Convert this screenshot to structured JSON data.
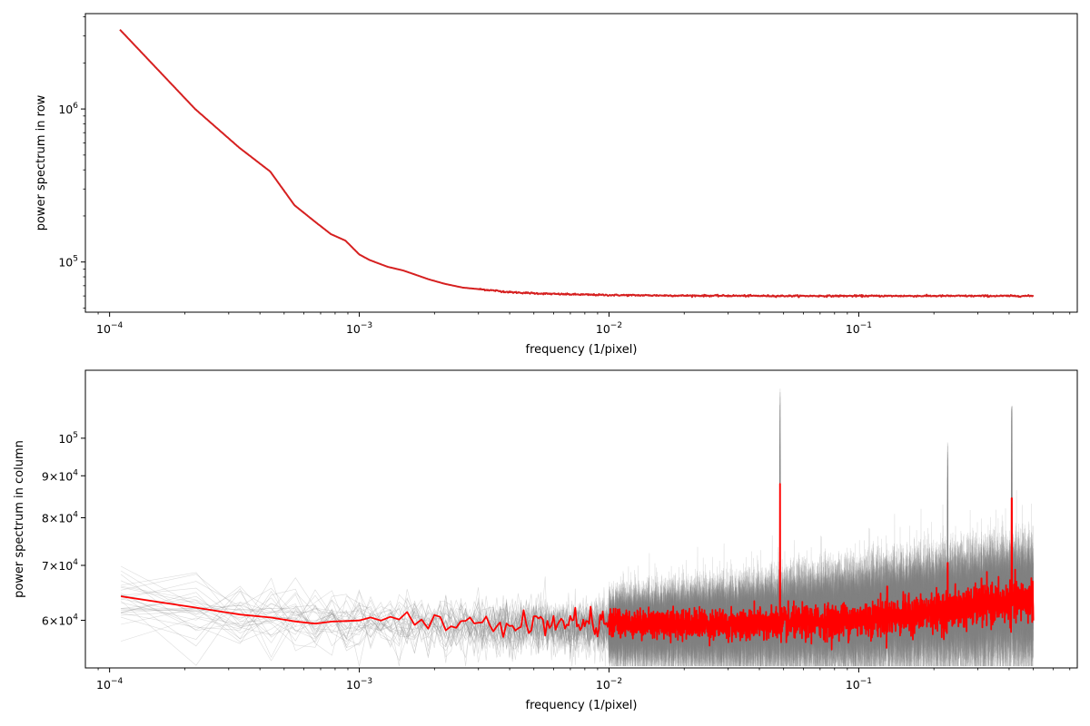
{
  "chart_data": [
    {
      "type": "line",
      "xscale": "log",
      "yscale": "log",
      "xlabel": "frequency (1/pixel)",
      "ylabel": "power spectrum in row",
      "xlim": [
        8e-05,
        0.75
      ],
      "ylim": [
        47000,
        4200000
      ],
      "x_ticks": [
        {
          "value": 0.0001,
          "mant": "10",
          "exp": "−4"
        },
        {
          "value": 0.001,
          "mant": "10",
          "exp": "−3"
        },
        {
          "value": 0.01,
          "mant": "10",
          "exp": "−2"
        },
        {
          "value": 0.1,
          "mant": "10",
          "exp": "−1"
        }
      ],
      "y_ticks": [
        {
          "value": 100000,
          "mant": "10",
          "exp": "5"
        },
        {
          "value": 1000000,
          "mant": "10",
          "exp": "6"
        }
      ],
      "grid": false,
      "series": [
        {
          "color": "#d62020",
          "x": [
            0.00011,
            0.00022,
            0.00033,
            0.00044,
            0.00055,
            0.00066,
            0.00077,
            0.00088,
            0.001,
            0.0011,
            0.0013,
            0.0015,
            0.0017,
            0.0019,
            0.0022,
            0.0026,
            0.003,
            0.0035,
            0.004,
            0.005,
            0.006,
            0.008,
            0.01,
            0.02,
            0.05,
            0.1,
            0.2,
            0.5
          ],
          "y": [
            3300000,
            1000000,
            560000,
            390000,
            235000,
            185000,
            152000,
            138000,
            112000,
            103000,
            93000,
            88000,
            82000,
            77000,
            72000,
            68000,
            66500,
            65000,
            63500,
            62500,
            61800,
            61200,
            60800,
            60300,
            60000,
            60000,
            60000,
            60000
          ]
        }
      ]
    },
    {
      "type": "line",
      "xscale": "log",
      "yscale": "log",
      "xlabel": "frequency (1/pixel)",
      "ylabel": "power spectrum in column",
      "xlim": [
        8e-05,
        0.75
      ],
      "ylim": [
        52500,
        121000
      ],
      "x_ticks": [
        {
          "value": 0.0001,
          "mant": "10",
          "exp": "−4"
        },
        {
          "value": 0.001,
          "mant": "10",
          "exp": "−3"
        },
        {
          "value": 0.01,
          "mant": "10",
          "exp": "−2"
        },
        {
          "value": 0.1,
          "mant": "10",
          "exp": "−1"
        }
      ],
      "y_ticks": [
        {
          "value": 60000,
          "mant": "6×10",
          "exp": "4"
        },
        {
          "value": 70000,
          "mant": "7×10",
          "exp": "4"
        },
        {
          "value": 80000,
          "mant": "8×10",
          "exp": "4"
        },
        {
          "value": 90000,
          "mant": "9×10",
          "exp": "4"
        },
        {
          "value": 100000,
          "mant": "10",
          "exp": "5"
        }
      ],
      "grid": false,
      "background_series": {
        "color": "#808080",
        "count": 30,
        "baseline_x": [
          0.00011,
          0.0003,
          0.001,
          0.003,
          0.01,
          0.03,
          0.1,
          0.3,
          0.5
        ],
        "baseline_y": [
          64000,
          61000,
          59500,
          59000,
          59000,
          59500,
          61000,
          63000,
          64000
        ],
        "spikes": [
          {
            "x": 0.0484,
            "y": 115000
          },
          {
            "x": 0.13,
            "y": 72000
          },
          {
            "x": 0.227,
            "y": 99000
          },
          {
            "x": 0.31,
            "y": 74000
          },
          {
            "x": 0.41,
            "y": 110000
          }
        ]
      },
      "series": [
        {
          "color": "#ff0000",
          "x": [
            0.00011,
            0.00022,
            0.00033,
            0.00044,
            0.00055,
            0.0007,
            0.00088,
            0.001,
            0.0012,
            0.0015,
            0.002,
            0.003,
            0.005,
            0.007,
            0.01,
            0.02,
            0.03,
            0.05,
            0.07,
            0.1,
            0.15,
            0.2,
            0.3,
            0.4,
            0.5
          ],
          "y": [
            64200,
            62200,
            61000,
            60500,
            59800,
            60000,
            59800,
            59200,
            59800,
            60000,
            59500,
            59300,
            59400,
            59700,
            59600,
            59500,
            59400,
            59500,
            59800,
            60200,
            60800,
            61500,
            62500,
            63200,
            63800
          ]
        }
      ],
      "series_spikes": [
        {
          "x": 0.0484,
          "y": 88000
        },
        {
          "x": 0.13,
          "y": 66000
        },
        {
          "x": 0.227,
          "y": 70500
        },
        {
          "x": 0.31,
          "y": 67500
        },
        {
          "x": 0.41,
          "y": 84500
        }
      ]
    }
  ]
}
